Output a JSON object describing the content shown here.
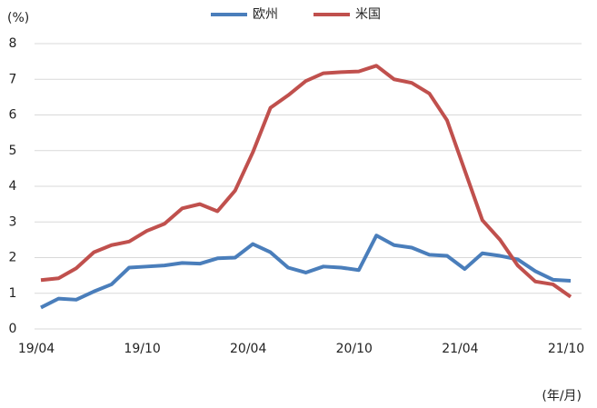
{
  "chart_data": {
    "type": "line",
    "y_label": "(%)",
    "x_label": "(年/月)",
    "categories": [
      "19/04",
      null,
      null,
      null,
      null,
      null,
      "19/10",
      null,
      null,
      null,
      null,
      null,
      "20/04",
      null,
      null,
      null,
      null,
      null,
      "20/10",
      null,
      null,
      null,
      null,
      null,
      "21/04",
      null,
      null,
      null,
      null,
      null,
      "21/10"
    ],
    "series": [
      {
        "name": "欧州",
        "color": "#4a7ebb",
        "values": [
          0.6,
          0.85,
          0.82,
          1.05,
          1.25,
          1.72,
          1.75,
          1.78,
          1.85,
          1.83,
          1.98,
          2.0,
          2.38,
          2.15,
          1.72,
          1.58,
          1.75,
          1.72,
          1.65,
          2.62,
          2.35,
          2.28,
          2.08,
          2.05,
          1.68,
          2.12,
          2.05,
          1.95,
          1.62,
          1.38,
          1.35
        ]
      },
      {
        "name": "米国",
        "color": "#c0504d",
        "values": [
          1.37,
          1.42,
          1.7,
          2.15,
          2.35,
          2.45,
          2.75,
          2.95,
          3.38,
          3.5,
          3.3,
          3.88,
          4.95,
          6.2,
          6.55,
          6.95,
          7.17,
          7.2,
          7.22,
          7.38,
          7.0,
          6.9,
          6.6,
          5.85,
          4.45,
          3.05,
          2.5,
          1.78,
          1.33,
          1.25,
          0.9
        ]
      }
    ],
    "ylim": [
      0,
      8
    ],
    "yticks": [
      0,
      1,
      2,
      3,
      4,
      5,
      6,
      7,
      8
    ],
    "grid": true,
    "legend": "top"
  }
}
